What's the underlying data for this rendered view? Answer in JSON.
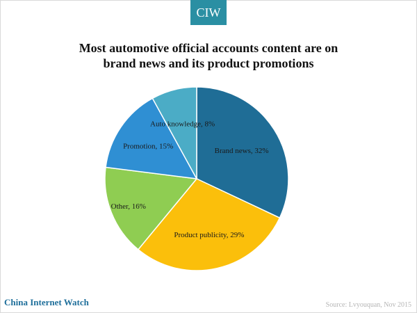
{
  "badge": {
    "text": "CIW"
  },
  "title": {
    "line1": "Most automotive official accounts content are on",
    "line2": "brand news and its product promotions"
  },
  "footer": {
    "brand": "China Internet Watch",
    "source": "Source: Lvyouquan, Nov 2015"
  },
  "chart_data": {
    "type": "pie",
    "title": "Most automotive official accounts content are on brand news and its product promotions",
    "slices": [
      {
        "label": "Brand news",
        "value": 32,
        "display": "Brand news, 32%",
        "color": "#1f6d96"
      },
      {
        "label": "Product publicity",
        "value": 29,
        "display": "Product publicity,  29%",
        "color": "#fbbf0b"
      },
      {
        "label": "Other",
        "value": 16,
        "display": "Other, 16%",
        "color": "#8fcd52"
      },
      {
        "label": "Promotion",
        "value": 15,
        "display": "Promotion,  15%",
        "color": "#2f8fd3"
      },
      {
        "label": "Auto knowledge",
        "value": 8,
        "display": "Auto knowledge, 8%",
        "color": "#4bacc6"
      }
    ],
    "start_angle": "12 o'clock",
    "direction": "clockwise",
    "legend": "none"
  }
}
